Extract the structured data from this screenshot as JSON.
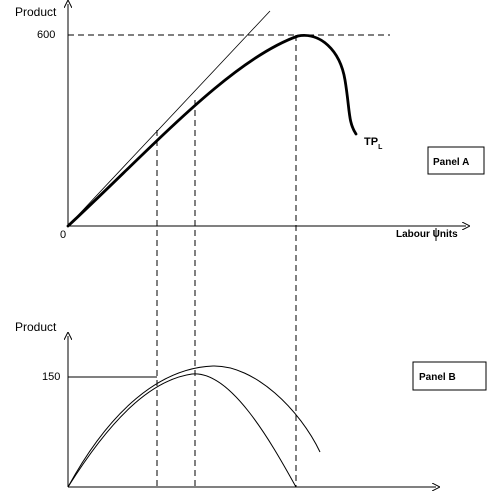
{
  "panel_a": {
    "y_axis_label": "Product",
    "y_tick_label": "600",
    "origin_label": "0",
    "x_axis_label": "Labour Units",
    "curve_label_main": "TP",
    "curve_label_sub": "L",
    "panel_label": "Panel A"
  },
  "panel_b": {
    "y_axis_label": "Product",
    "y_tick_label": "150",
    "panel_label": "Panel B"
  }
}
